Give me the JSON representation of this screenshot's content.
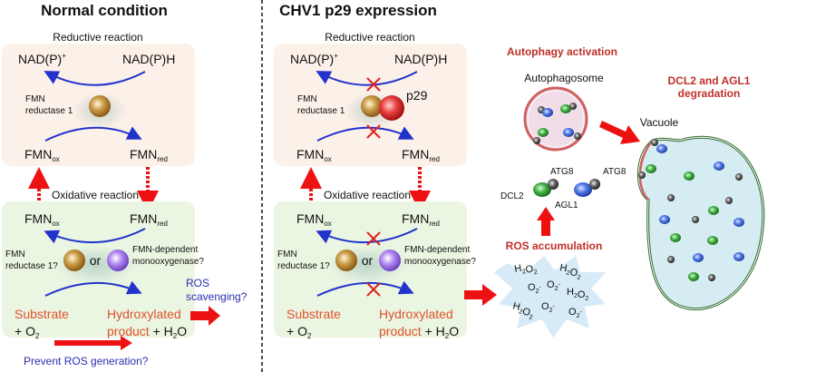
{
  "colors": {
    "arrow_blue": "#2233cc",
    "arrow_red": "#ee1111",
    "box_reductive": "#fbf1e8",
    "box_oxidative": "#eaf6e2",
    "fmn_reductase": "#b8862f",
    "monooxygenase": "#a070e0",
    "p29": "#e03030",
    "dcl2": "#3aaa3a",
    "agl1": "#4a70e0",
    "atg8": "#555555",
    "vacuole": "#d4ecf2",
    "ros_cloud": "#d6ebf7"
  },
  "normal": {
    "title": "Normal condition",
    "reductive_label": "Reductive reaction",
    "nadp_plus": "NAD(P)",
    "nadp_plus_sup": "+",
    "nadph": "NAD(P)H",
    "fmn_reductase": [
      "FMN",
      "reductase 1"
    ],
    "fmn": "FMN",
    "ox": "ox",
    "red": "red",
    "oxidative_label": "Oxidative reaction",
    "fmn_reductase_q": [
      "FMN",
      "reductase 1?"
    ],
    "or": "or",
    "monooxygenase": [
      "FMN-dependent",
      "monooxygenase?"
    ],
    "substrate": "Substrate",
    "plus_o": "+ O",
    "two": "2",
    "hydroxylated": "Hydroxylated",
    "product": "product",
    "plus_h": " + H",
    "h2o_o": "O",
    "ros_scavenging": [
      "ROS",
      "scavenging?"
    ],
    "prevent_ros": "Prevent ROS generation?"
  },
  "p29": {
    "title": "CHV1 p29 expression",
    "p29_label": "p29"
  },
  "autophagy": {
    "activation": "Autophagy activation",
    "autophagosome": "Autophagosome",
    "degradation": [
      "DCL2 and AGL1",
      "degradation"
    ],
    "vacuole": "Vacuole",
    "atg8": "ATG8",
    "dcl2": "DCL2",
    "agl1": "AGL1",
    "ros_accumulation": "ROS accumulation",
    "ros_species": [
      "H2O2",
      "O2-"
    ]
  }
}
